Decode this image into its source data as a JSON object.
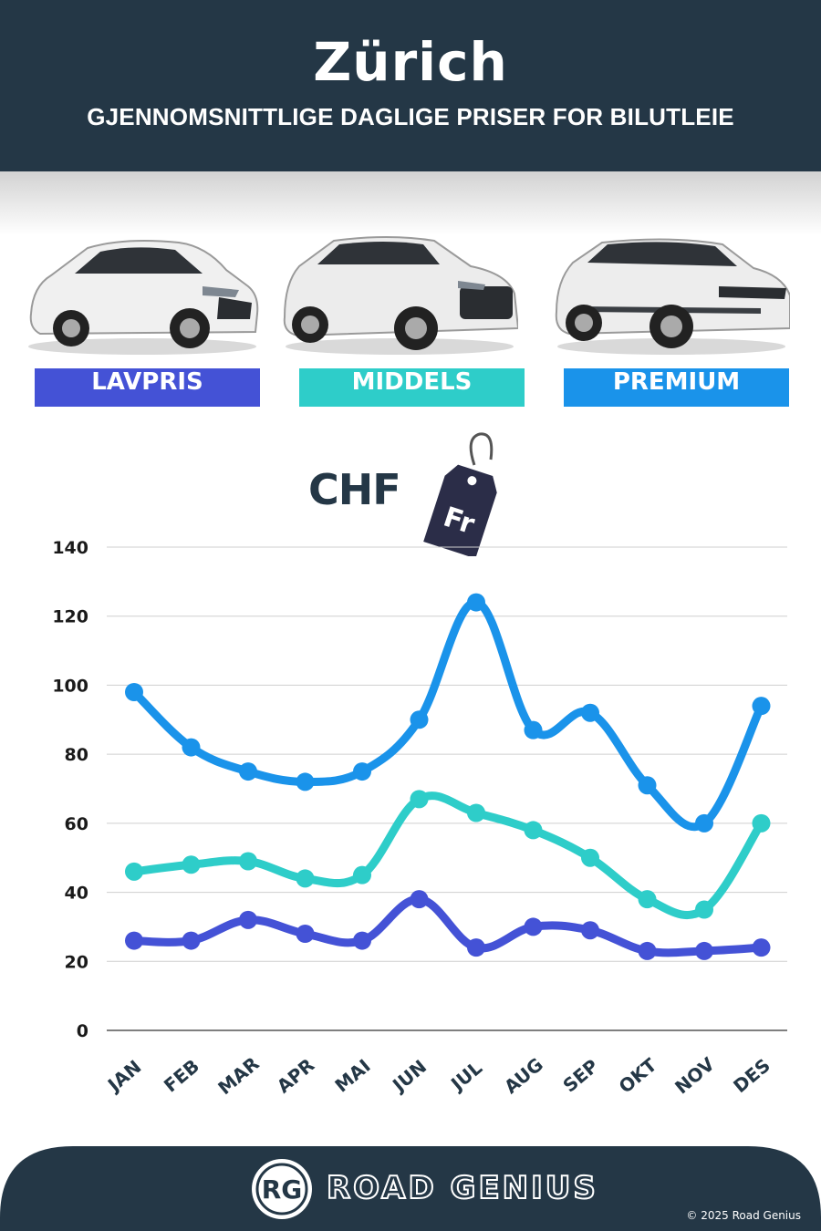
{
  "header": {
    "title": "Zürich",
    "subtitle": "GJENNOMSNITTLIGE DAGLIGE PRISER FOR BILUTLEIE"
  },
  "categories": [
    {
      "label": "LAVPRIS",
      "color": "#4452d6",
      "icon": "hatchback-car-icon"
    },
    {
      "label": "MIDDELS",
      "color": "#2ecdc9",
      "icon": "suv-car-icon"
    },
    {
      "label": "PREMIUM",
      "color": "#1a93ea",
      "icon": "luxury-suv-car-icon"
    }
  ],
  "currency": {
    "label": "CHF",
    "tag_text": "Fr"
  },
  "chart_data": {
    "type": "line",
    "categories": [
      "JAN",
      "FEB",
      "MAR",
      "APR",
      "MAI",
      "JUN",
      "JUL",
      "AUG",
      "SEP",
      "OKT",
      "NOV",
      "DES"
    ],
    "series": [
      {
        "name": "LAVPRIS",
        "color": "#4452d6",
        "values": [
          26,
          26,
          32,
          28,
          26,
          38,
          24,
          30,
          29,
          23,
          23,
          24
        ]
      },
      {
        "name": "MIDDELS",
        "color": "#2ecdc9",
        "values": [
          46,
          48,
          49,
          44,
          45,
          67,
          63,
          58,
          50,
          38,
          35,
          60
        ]
      },
      {
        "name": "PREMIUM",
        "color": "#1a93ea",
        "values": [
          98,
          82,
          75,
          72,
          75,
          90,
          124,
          87,
          92,
          71,
          60,
          94
        ]
      }
    ],
    "ylim": [
      0,
      140
    ],
    "yticks": [
      0,
      20,
      40,
      60,
      80,
      100,
      120,
      140
    ],
    "grid": true
  },
  "footer": {
    "logo_text": "RG",
    "brand": "ROAD GENIUS",
    "copyright": "© 2025 Road Genius"
  }
}
